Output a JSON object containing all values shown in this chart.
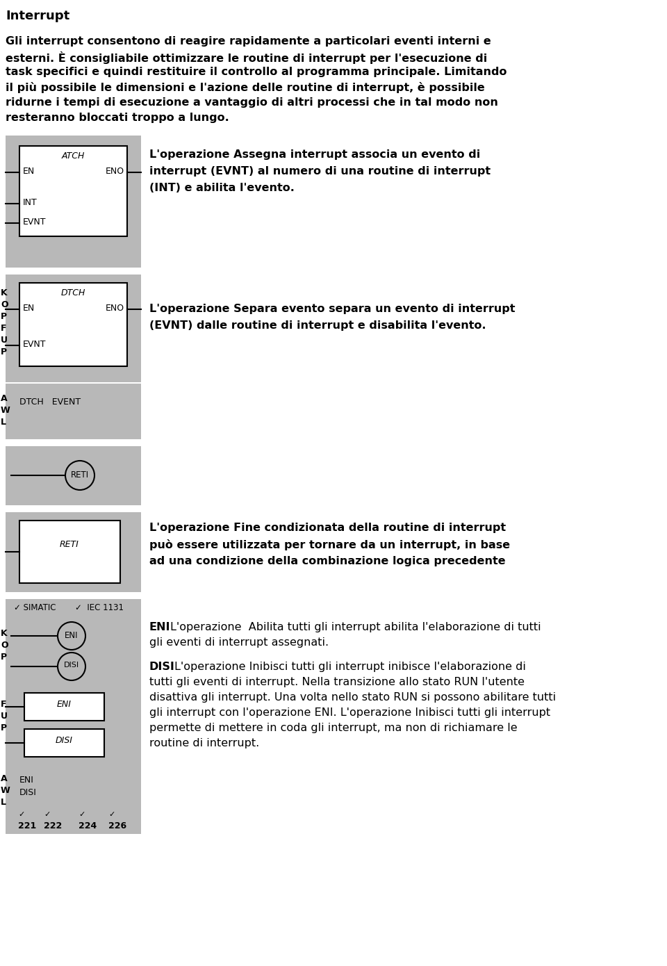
{
  "title": "Interrupt",
  "bg_color": "#ffffff",
  "panel_bg": "#b8b8b8",
  "box_bg": "#ffffff",
  "text_color": "#000000",
  "intro_lines": [
    "Gli interrupt consentono di reagire rapidamente a particolari eventi interni e",
    "esterni. È consigliabile ottimizzare le routine di interrupt per l'esecuzione di",
    "task specifici e quindi restituire il controllo al programma principale. Limitando",
    "il più possibile le dimensioni e l'azione delle routine di interrupt, è possibile",
    "ridurne i tempi di esecuzione a vantaggio di altri processi che in tal modo non",
    "resteranno bloccati troppo a lungo."
  ],
  "desc1_lines": [
    "L'operazione Assegna interrupt associa un evento di",
    "interrupt (EVNT) al numero di una routine di interrupt",
    "(INT) e abilita l'evento."
  ],
  "desc2_lines": [
    "L'operazione Separa evento separa un evento di interrupt",
    "(EVNT) dalle routine di interrupt e disabilita l'evento."
  ],
  "desc3_lines": [
    "L'operazione Fine condizionata della routine di interrupt",
    "può essere utilizzata per tornare da un interrupt, in base",
    "ad una condizione della combinazione logica precedente"
  ],
  "eni_desc_lines": [
    "L'operazione  Abilita tutti gli interrupt abilita l'elaborazione di tutti",
    "gli eventi di interrupt assegnati."
  ],
  "disi_desc_lines": [
    "L'operazione Inibisci tutti gli interrupt inibisce l'elaborazione di",
    "tutti gli eventi di interrupt. Nella transizione allo stato RUN l'utente",
    "disattiva gli interrupt. Una volta nello stato RUN si possono abilitare tutti",
    "gli interrupt con l'operazione ENI. L'operazione Inibisci tutti gli interrupt",
    "permette di mettere in coda gli interrupt, ma non di richiamare le",
    "routine di interrupt."
  ],
  "page_numbers": [
    "221",
    "222",
    "224",
    "226"
  ]
}
